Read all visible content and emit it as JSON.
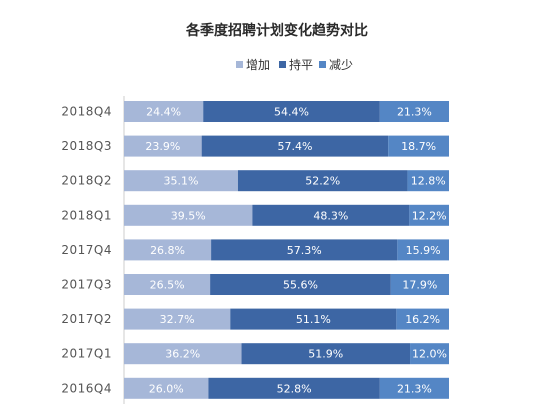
{
  "chart_data": {
    "type": "bar",
    "orientation": "horizontal",
    "stacked": "percent",
    "title": "各季度招聘计划变化趋势对比",
    "legend_position": "top",
    "categories": [
      "2018Q4",
      "2018Q3",
      "2018Q2",
      "2018Q1",
      "2017Q4",
      "2017Q3",
      "2017Q2",
      "2017Q1",
      "2016Q4"
    ],
    "series": [
      {
        "name": "增加",
        "color": "#a6b7d8",
        "values": [
          24.4,
          23.9,
          35.1,
          39.5,
          26.8,
          26.5,
          32.7,
          36.2,
          26.0
        ]
      },
      {
        "name": "持平",
        "color": "#3d66a4",
        "values": [
          54.4,
          57.4,
          52.2,
          48.3,
          57.3,
          55.6,
          51.1,
          51.9,
          52.8
        ]
      },
      {
        "name": "减少",
        "color": "#5486c5",
        "values": [
          21.3,
          18.7,
          12.8,
          12.2,
          15.9,
          17.9,
          16.2,
          12.0,
          21.3
        ]
      }
    ],
    "value_format": "{v}%",
    "xlim": [
      0,
      100
    ],
    "grid": false
  }
}
